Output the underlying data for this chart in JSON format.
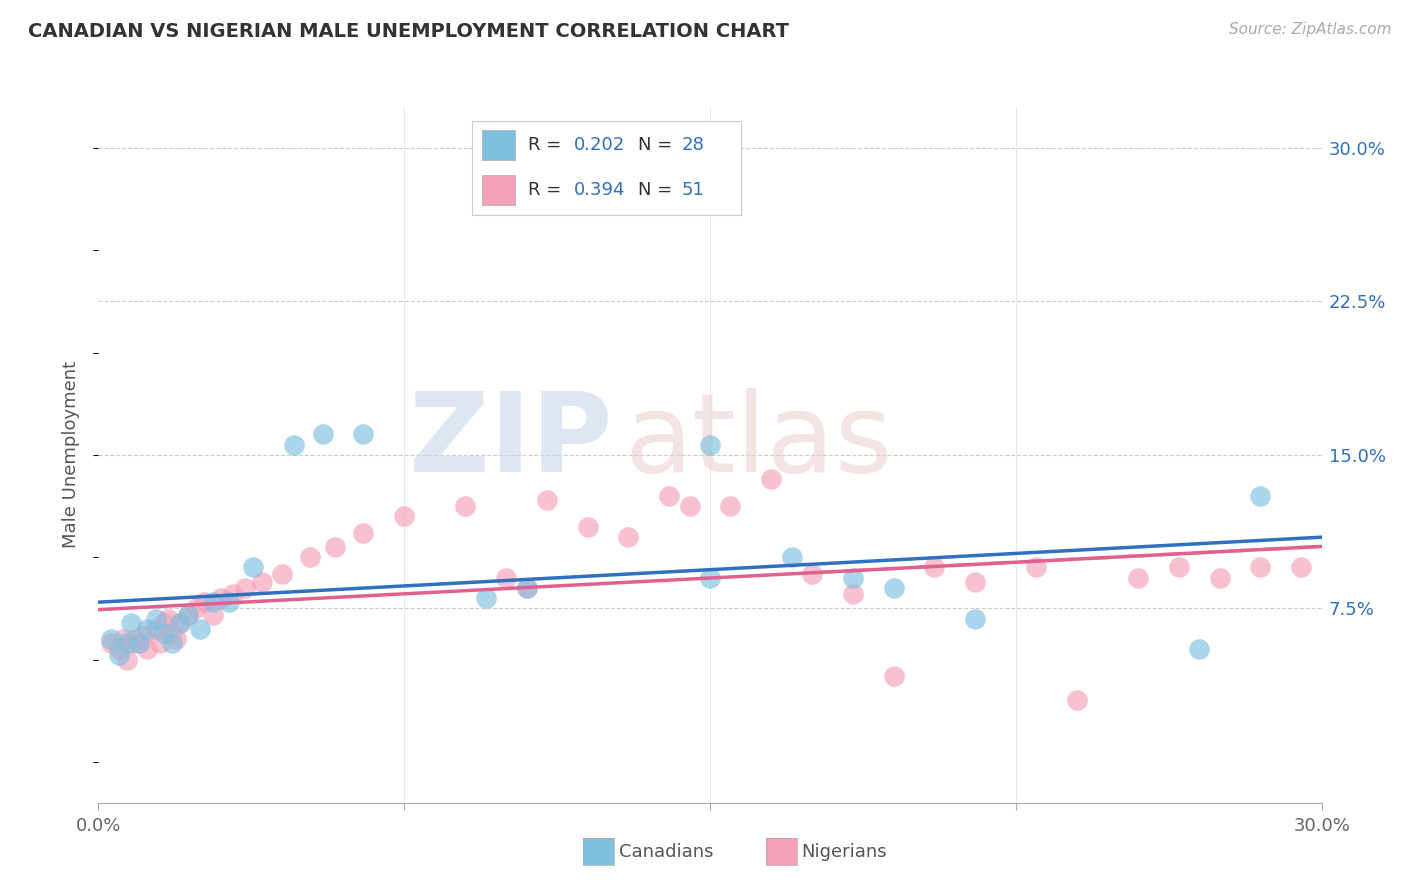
{
  "title": "CANADIAN VS NIGERIAN MALE UNEMPLOYMENT CORRELATION CHART",
  "source": "Source: ZipAtlas.com",
  "ylabel": "Male Unemployment",
  "xlim": [
    0.0,
    0.3
  ],
  "ylim": [
    -0.02,
    0.32
  ],
  "plot_ylim": [
    -0.02,
    0.32
  ],
  "xticks": [
    0.0,
    0.075,
    0.15,
    0.225,
    0.3
  ],
  "xticklabels": [
    "0.0%",
    "",
    "",
    "",
    "30.0%"
  ],
  "ytick_positions": [
    0.075,
    0.15,
    0.225,
    0.3
  ],
  "ytick_labels": [
    "7.5%",
    "15.0%",
    "22.5%",
    "30.0%"
  ],
  "canadian_R": 0.202,
  "canadian_N": 28,
  "nigerian_R": 0.394,
  "nigerian_N": 51,
  "canadian_color": "#7fbfdf",
  "nigerian_color": "#f4a0b8",
  "canadian_line_color": "#3070c0",
  "nigerian_line_color": "#e06090",
  "background_color": "#ffffff",
  "grid_color": "#cccccc",
  "canadians_x": [
    0.003,
    0.005,
    0.007,
    0.008,
    0.01,
    0.012,
    0.014,
    0.016,
    0.018,
    0.02,
    0.022,
    0.025,
    0.028,
    0.032,
    0.038,
    0.048,
    0.055,
    0.065,
    0.095,
    0.105,
    0.15,
    0.17,
    0.185,
    0.195,
    0.215,
    0.27,
    0.285,
    0.15
  ],
  "canadians_y": [
    0.06,
    0.052,
    0.058,
    0.068,
    0.058,
    0.065,
    0.07,
    0.063,
    0.058,
    0.068,
    0.072,
    0.065,
    0.078,
    0.078,
    0.095,
    0.155,
    0.16,
    0.16,
    0.08,
    0.085,
    0.09,
    0.1,
    0.09,
    0.085,
    0.07,
    0.055,
    0.13,
    0.155
  ],
  "nigerians_x": [
    0.003,
    0.005,
    0.006,
    0.007,
    0.008,
    0.009,
    0.01,
    0.011,
    0.012,
    0.014,
    0.015,
    0.016,
    0.017,
    0.018,
    0.019,
    0.02,
    0.022,
    0.024,
    0.026,
    0.028,
    0.03,
    0.033,
    0.036,
    0.04,
    0.045,
    0.052,
    0.058,
    0.065,
    0.075,
    0.09,
    0.1,
    0.105,
    0.11,
    0.12,
    0.13,
    0.14,
    0.145,
    0.155,
    0.165,
    0.175,
    0.185,
    0.195,
    0.205,
    0.215,
    0.23,
    0.24,
    0.255,
    0.265,
    0.275,
    0.285,
    0.295
  ],
  "nigerians_y": [
    0.058,
    0.055,
    0.06,
    0.05,
    0.058,
    0.06,
    0.058,
    0.062,
    0.055,
    0.065,
    0.058,
    0.068,
    0.07,
    0.063,
    0.06,
    0.068,
    0.072,
    0.075,
    0.078,
    0.072,
    0.08,
    0.082,
    0.085,
    0.088,
    0.092,
    0.1,
    0.105,
    0.112,
    0.12,
    0.125,
    0.09,
    0.085,
    0.128,
    0.115,
    0.11,
    0.13,
    0.125,
    0.125,
    0.138,
    0.092,
    0.082,
    0.042,
    0.095,
    0.088,
    0.095,
    0.03,
    0.09,
    0.095,
    0.09,
    0.095,
    0.095
  ]
}
